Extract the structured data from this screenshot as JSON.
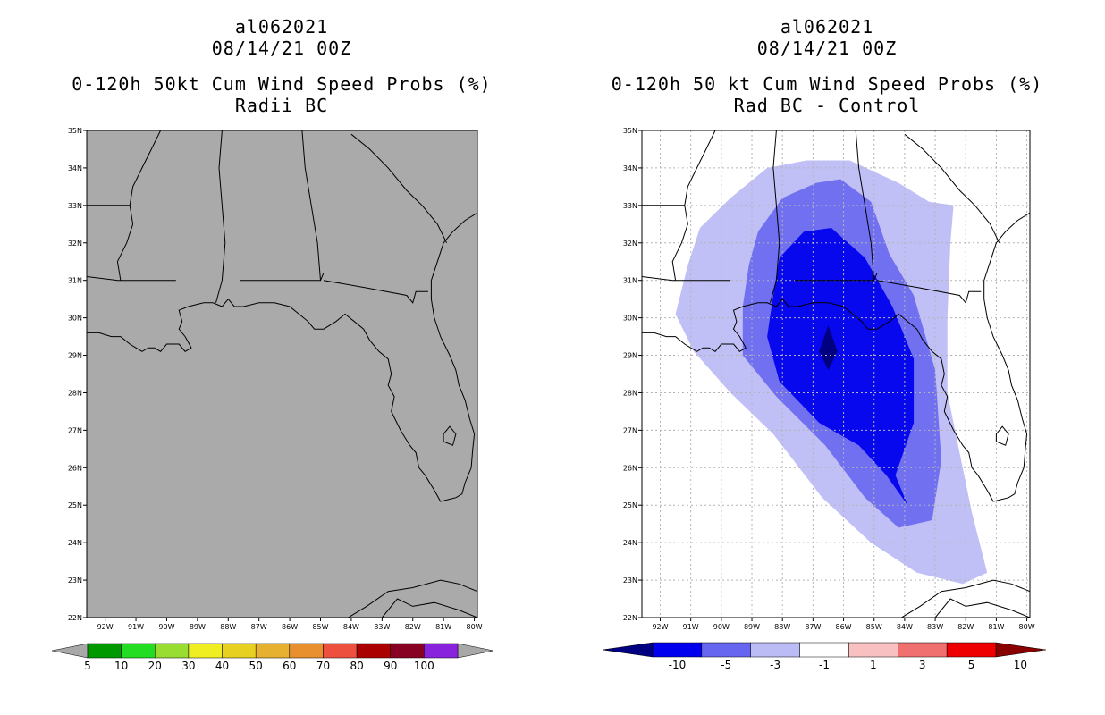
{
  "chart_data": [
    {
      "type": "map",
      "title_lines": [
        "al062021",
        "08/14/21 00Z",
        "0-120h 50kt Cum Wind Speed Probs (%)",
        "Radii BC"
      ],
      "x_ticks": [
        "92W",
        "91W",
        "90W",
        "89W",
        "88W",
        "87W",
        "86W",
        "85W",
        "84W",
        "83W",
        "82W",
        "81W",
        "80W"
      ],
      "y_ticks": [
        "22N",
        "23N",
        "24N",
        "25N",
        "26N",
        "27N",
        "28N",
        "29N",
        "30N",
        "31N",
        "32N",
        "33N",
        "34N",
        "35N"
      ],
      "lon_range": [
        -92.6,
        -79.9
      ],
      "lat_range": [
        22,
        35
      ],
      "colorbar": {
        "labels": [
          "5",
          "10",
          "20",
          "30",
          "40",
          "50",
          "60",
          "70",
          "80",
          "90",
          "100"
        ],
        "colors": [
          "#009900",
          "#22dd22",
          "#99dd33",
          "#eeee22",
          "#e8d020",
          "#e6b030",
          "#e89030",
          "#ee5040",
          "#aa0000",
          "#880022",
          "#8822dd"
        ]
      },
      "fill_color": "#aaaaaa"
    },
    {
      "type": "map",
      "title_lines": [
        "al062021",
        "08/14/21 00Z",
        "0-120h 50 kt Cum Wind Speed Probs (%)",
        "Rad BC - Control"
      ],
      "x_ticks": [
        "92W",
        "91W",
        "90W",
        "89W",
        "88W",
        "87W",
        "86W",
        "85W",
        "84W",
        "83W",
        "82W",
        "81W",
        "80W"
      ],
      "y_ticks": [
        "22N",
        "23N",
        "24N",
        "25N",
        "26N",
        "27N",
        "28N",
        "29N",
        "30N",
        "31N",
        "32N",
        "33N",
        "34N",
        "35N"
      ],
      "lon_range": [
        -92.6,
        -79.9
      ],
      "lat_range": [
        22,
        35
      ],
      "colorbar": {
        "labels": [
          "-10",
          "-5",
          "-3",
          "-1",
          "1",
          "3",
          "5",
          "10"
        ],
        "colors": [
          "#000080",
          "#0000ee",
          "#6666f0",
          "#bbbbf5",
          "#ffffff",
          "#f8c0c0",
          "#f07070",
          "#ee0000",
          "#880000"
        ]
      },
      "contours": {
        "levels": [
          "-1",
          "-3",
          "-5",
          "-10"
        ],
        "colors": [
          "#c0c0f6",
          "#7070f0",
          "#0808ee",
          "#000080"
        ],
        "polygons": [
          [
            [
              -89.7,
              33.2
            ],
            [
              -88.5,
              34.0
            ],
            [
              -87.2,
              34.2
            ],
            [
              -85.8,
              34.2
            ],
            [
              -84.2,
              33.6
            ],
            [
              -83.2,
              33.1
            ],
            [
              -82.4,
              33.0
            ],
            [
              -82.5,
              32.0
            ],
            [
              -82.6,
              30.0
            ],
            [
              -82.6,
              28.0
            ],
            [
              -82.1,
              26.0
            ],
            [
              -81.8,
              24.8
            ],
            [
              -81.3,
              23.2
            ],
            [
              -82.1,
              22.9
            ],
            [
              -83.6,
              23.2
            ],
            [
              -85.1,
              24.0
            ],
            [
              -86.7,
              25.2
            ],
            [
              -88.3,
              26.9
            ],
            [
              -89.7,
              28.0
            ],
            [
              -90.9,
              29.1
            ],
            [
              -91.5,
              30.1
            ],
            [
              -91.1,
              31.4
            ],
            [
              -90.7,
              32.4
            ]
          ],
          [
            [
              -88.8,
              32.3
            ],
            [
              -88.0,
              33.2
            ],
            [
              -86.9,
              33.6
            ],
            [
              -86.1,
              33.7
            ],
            [
              -85.1,
              33.1
            ],
            [
              -84.5,
              31.7
            ],
            [
              -83.7,
              30.6
            ],
            [
              -83.0,
              28.6
            ],
            [
              -82.8,
              26.2
            ],
            [
              -83.1,
              24.6
            ],
            [
              -84.2,
              24.4
            ],
            [
              -85.3,
              25.2
            ],
            [
              -86.6,
              26.6
            ],
            [
              -88.2,
              27.9
            ],
            [
              -89.3,
              29.0
            ],
            [
              -89.3,
              30.3
            ],
            [
              -89.1,
              31.4
            ]
          ],
          [
            [
              -88.1,
              31.6
            ],
            [
              -87.3,
              32.3
            ],
            [
              -86.4,
              32.4
            ],
            [
              -85.3,
              31.6
            ],
            [
              -84.4,
              30.3
            ],
            [
              -83.7,
              28.9
            ],
            [
              -83.7,
              27.2
            ],
            [
              -84.3,
              25.8
            ],
            [
              -83.9,
              25.0
            ],
            [
              -84.6,
              25.8
            ],
            [
              -85.5,
              26.6
            ],
            [
              -86.8,
              27.2
            ],
            [
              -88.1,
              28.3
            ],
            [
              -88.5,
              29.5
            ],
            [
              -88.3,
              30.6
            ]
          ],
          [
            [
              -86.5,
              29.8
            ],
            [
              -86.2,
              29.1
            ],
            [
              -86.5,
              28.6
            ],
            [
              -86.8,
              29.1
            ]
          ]
        ]
      }
    }
  ]
}
